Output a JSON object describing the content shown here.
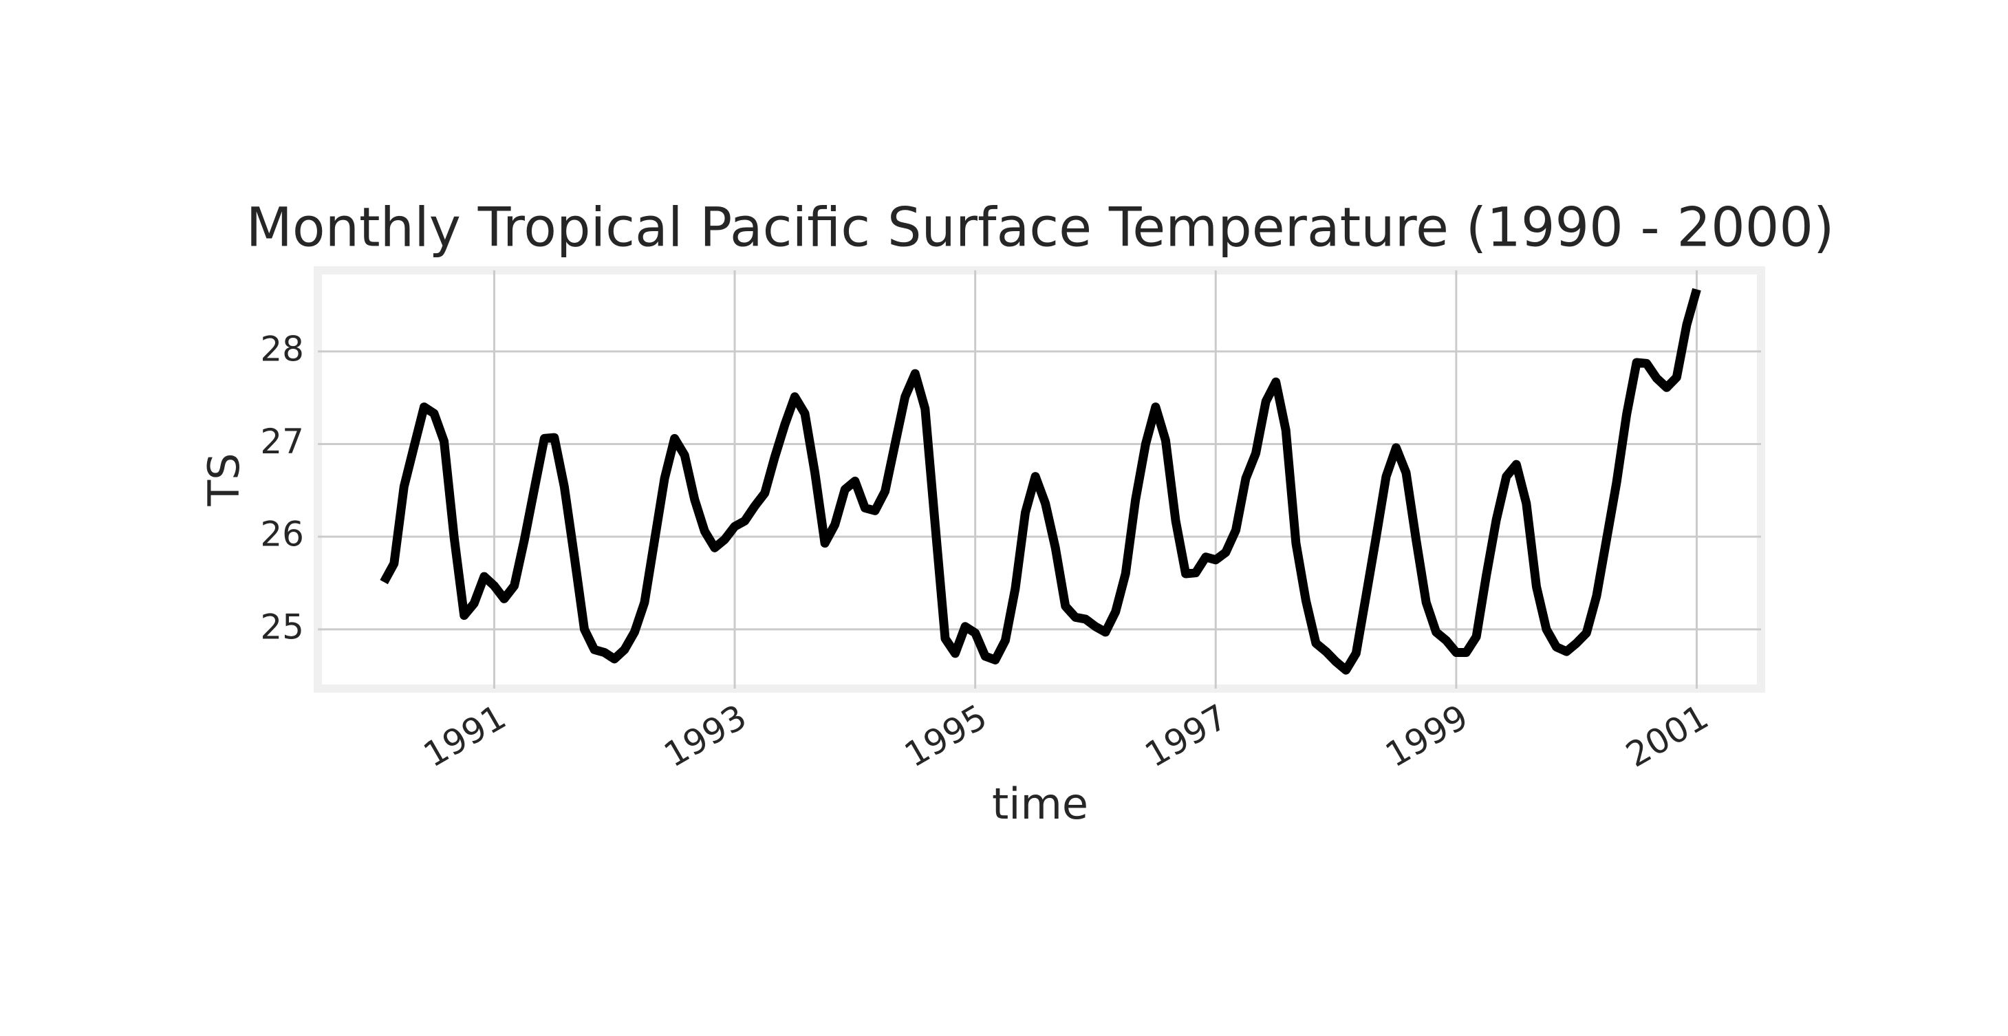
{
  "chart_data": {
    "type": "line",
    "title": "Monthly Tropical Pacific Surface Temperature (1990 - 2000)",
    "x_label": "time",
    "y_label": "TS",
    "x": [
      1990.083,
      1990.167,
      1990.25,
      1990.333,
      1990.417,
      1990.5,
      1990.583,
      1990.667,
      1990.75,
      1990.833,
      1990.917,
      1991,
      1991.083,
      1991.167,
      1991.25,
      1991.333,
      1991.417,
      1991.5,
      1991.583,
      1991.667,
      1991.75,
      1991.833,
      1991.917,
      1992,
      1992.083,
      1992.167,
      1992.25,
      1992.333,
      1992.417,
      1992.5,
      1992.583,
      1992.667,
      1992.75,
      1992.833,
      1992.917,
      1993,
      1993.083,
      1993.167,
      1993.25,
      1993.333,
      1993.417,
      1993.5,
      1993.583,
      1993.667,
      1993.75,
      1993.833,
      1993.917,
      1994,
      1994.083,
      1994.167,
      1994.25,
      1994.333,
      1994.417,
      1994.5,
      1994.583,
      1994.667,
      1994.75,
      1994.833,
      1994.917,
      1995,
      1995.083,
      1995.167,
      1995.25,
      1995.333,
      1995.417,
      1995.5,
      1995.583,
      1995.667,
      1995.75,
      1995.833,
      1995.917,
      1996,
      1996.083,
      1996.167,
      1996.25,
      1996.333,
      1996.417,
      1996.5,
      1996.583,
      1996.667,
      1996.75,
      1996.833,
      1996.917,
      1997,
      1997.083,
      1997.167,
      1997.25,
      1997.333,
      1997.417,
      1997.5,
      1997.583,
      1997.667,
      1997.75,
      1997.833,
      1997.917,
      1998,
      1998.083,
      1998.167,
      1998.25,
      1998.333,
      1998.417,
      1998.5,
      1998.583,
      1998.667,
      1998.75,
      1998.833,
      1998.917,
      1999,
      1999.083,
      1999.167,
      1999.25,
      1999.333,
      1999.417,
      1999.5,
      1999.583,
      1999.667,
      1999.75,
      1999.833,
      1999.917,
      2000,
      2000.083,
      2000.167,
      2000.25,
      2000.333,
      2000.417,
      2000.5,
      2000.583,
      2000.667,
      2000.75,
      2000.833,
      2000.917,
      2001
    ],
    "series": [
      {
        "name": "TS",
        "color": "#000000",
        "values": [
          25.51,
          25.71,
          26.54,
          26.97,
          27.4,
          27.33,
          27.03,
          25.99,
          25.15,
          25.28,
          25.57,
          25.47,
          25.33,
          25.47,
          25.96,
          26.51,
          27.06,
          27.07,
          26.54,
          25.78,
          25.0,
          24.78,
          24.75,
          24.68,
          24.78,
          24.97,
          25.29,
          25.96,
          26.63,
          27.06,
          26.88,
          26.4,
          26.06,
          25.88,
          25.97,
          26.11,
          26.17,
          26.33,
          26.47,
          26.86,
          27.21,
          27.51,
          27.33,
          26.69,
          25.93,
          26.13,
          26.51,
          26.6,
          26.31,
          26.28,
          26.49,
          27.0,
          27.51,
          27.76,
          27.38,
          26.13,
          24.9,
          24.74,
          25.03,
          24.96,
          24.71,
          24.67,
          24.88,
          25.44,
          26.26,
          26.65,
          26.36,
          25.88,
          25.25,
          25.13,
          25.11,
          25.03,
          24.97,
          25.19,
          25.6,
          26.4,
          27.0,
          27.4,
          27.04,
          26.17,
          25.6,
          25.61,
          25.78,
          25.75,
          25.83,
          26.07,
          26.63,
          26.9,
          27.46,
          27.67,
          27.15,
          25.93,
          25.31,
          24.85,
          24.76,
          24.65,
          24.56,
          24.74,
          25.36,
          25.99,
          26.65,
          26.96,
          26.69,
          25.96,
          25.29,
          24.97,
          24.88,
          24.75,
          24.75,
          24.92,
          25.58,
          26.18,
          26.65,
          26.78,
          26.36,
          25.46,
          25.0,
          24.81,
          24.76,
          24.85,
          24.96,
          25.36,
          25.97,
          26.58,
          27.32,
          27.88,
          27.87,
          27.71,
          27.61,
          27.72,
          28.29,
          28.67
        ]
      }
    ],
    "xlim": [
      1989.533,
      2001.535
    ],
    "xticks": [
      1991,
      1993,
      1995,
      1997,
      1999,
      2001
    ],
    "ylim": [
      24.36,
      28.875
    ],
    "yticks": [
      25,
      26,
      27,
      28
    ],
    "grid": true
  }
}
